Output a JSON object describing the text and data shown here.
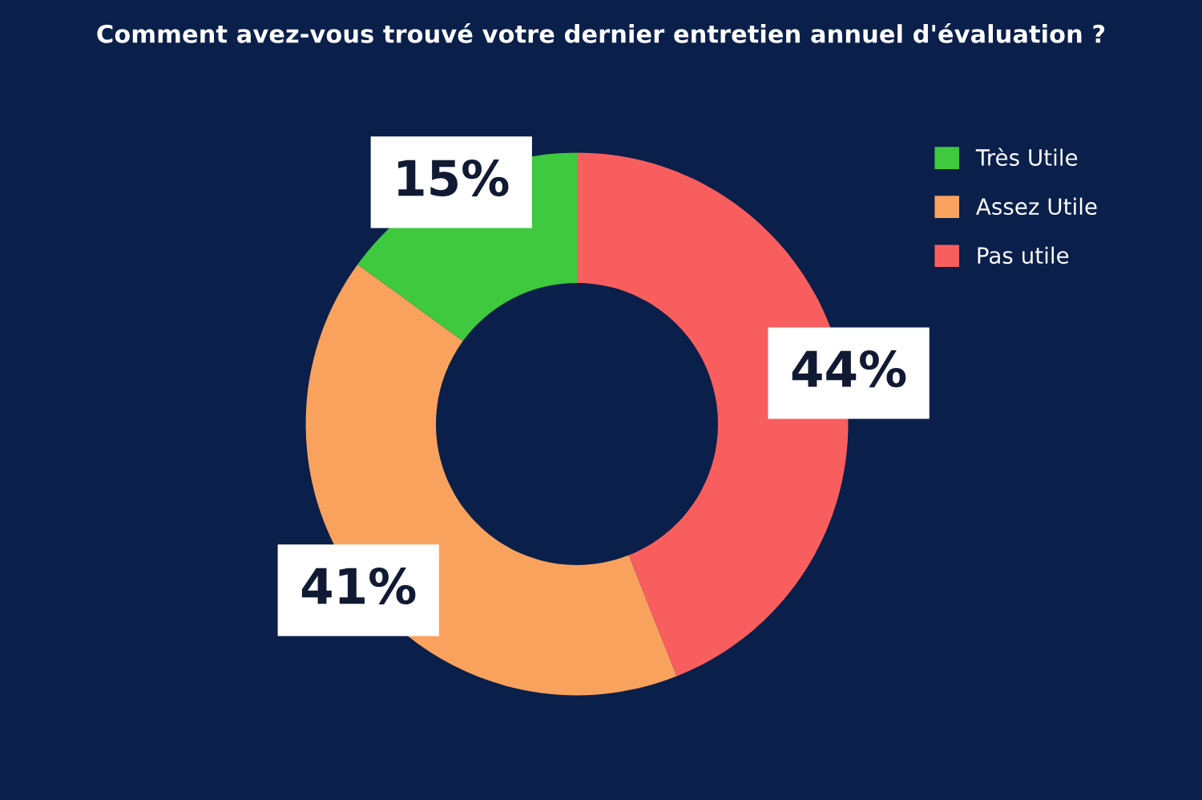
{
  "chart_data": {
    "type": "donut",
    "title": "Comment avez-vous trouvé votre dernier entretien annuel d'évaluation ?",
    "categories": [
      "Très Utile",
      "Assez Utile",
      "Pas utile"
    ],
    "values": [
      15,
      41,
      44
    ],
    "colors": [
      "#3ec93e",
      "#f9a25e",
      "#f95e5e"
    ],
    "value_labels": [
      "15%",
      "41%",
      "44%"
    ],
    "legend": "top right"
  }
}
